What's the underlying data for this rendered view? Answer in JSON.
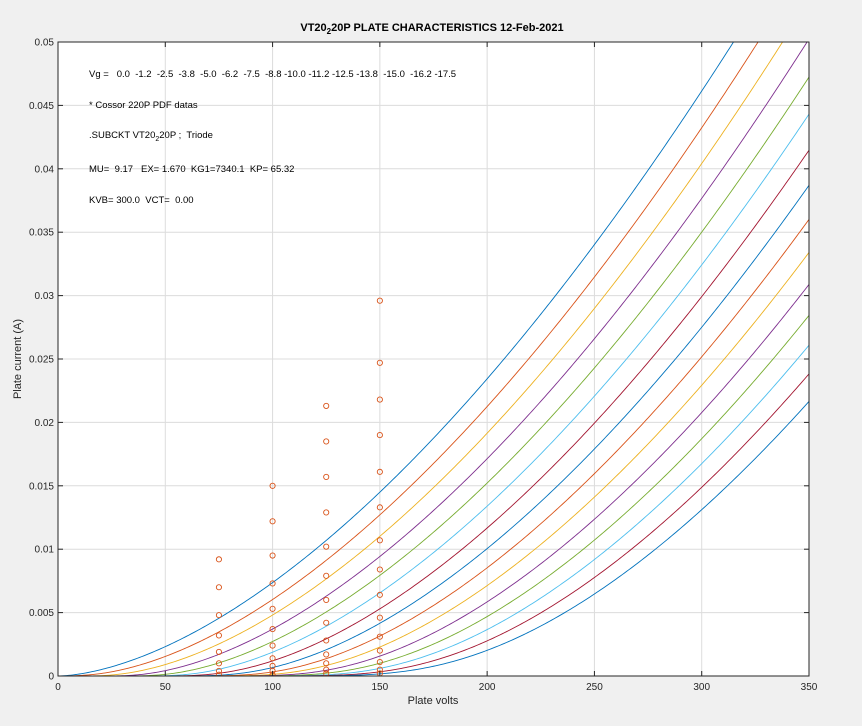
{
  "chart_data": {
    "type": "line",
    "title": "VT20 20P PLATE CHARACTERISTICS  12-Feb-2021",
    "title_parts": {
      "pre": "VT20",
      "sub": "2",
      "post": "20P PLATE CHARACTERISTICS  12-Feb-2021"
    },
    "xlabel": "Plate volts",
    "ylabel": "Plate current (A)",
    "xlim": [
      0,
      350
    ],
    "ylim": [
      0,
      0.05
    ],
    "grid": true,
    "xticks": [
      0,
      50,
      100,
      150,
      200,
      250,
      300,
      350
    ],
    "xtick_labels": [
      "0",
      "50",
      "100",
      "150",
      "200",
      "250",
      "300",
      "350"
    ],
    "yticks": [
      0,
      0.005,
      0.01,
      0.015,
      0.02,
      0.025,
      0.03,
      0.035,
      0.04,
      0.045,
      0.05
    ],
    "ytick_labels": [
      "0",
      "0.005",
      "0.01",
      "0.015",
      "0.02",
      "0.025",
      "0.03",
      "0.035",
      "0.04",
      "0.045",
      "0.05"
    ],
    "annotations": {
      "vg": "Vg =   0.0  -1.2  -2.5  -3.8  -5.0  -6.2  -7.5  -8.8 -10.0 -11.2 -12.5 -13.8  -15.0  -16.2 -17.5",
      "source": "* Cossor 220P PDF datas",
      "subckt_pre": ".SUBCKT VT20",
      "subckt_sub": "2",
      "subckt_post": "20P ;  Triode",
      "params1": "MU=  9.17   EX= 1.670  KG1=7340.1  KP= 65.32",
      "params2": "KVB= 300.0  VCT=  0.00"
    },
    "model": {
      "mu": 9.17,
      "ex": 1.67,
      "kg1": 7340.1,
      "kp": 65.32,
      "kvb": 300.0
    },
    "grid_voltages": [
      0.0,
      -1.25,
      -2.5,
      -3.75,
      -5.0,
      -6.25,
      -7.5,
      -8.75,
      -10.0,
      -11.25,
      -12.5,
      -13.75,
      -15.0,
      -16.25,
      -17.5
    ],
    "series_colors": [
      "#0072bd",
      "#d95319",
      "#edb120",
      "#7e2f8e",
      "#77ac30",
      "#4dbeee",
      "#a2142f"
    ],
    "marker_color": "#d95319",
    "measured_points": [
      {
        "x": 75,
        "values": [
          0.0092,
          0.007,
          0.0048,
          0.0032,
          0.0019,
          0.001,
          0.0004,
          0.0001
        ]
      },
      {
        "x": 100,
        "values": [
          0.015,
          0.0122,
          0.0095,
          0.0073,
          0.0053,
          0.0037,
          0.0024,
          0.0014,
          0.0008,
          0.0004,
          0.0001
        ]
      },
      {
        "x": 125,
        "values": [
          0.0213,
          0.0185,
          0.0157,
          0.0129,
          0.0102,
          0.0079,
          0.006,
          0.0042,
          0.0028,
          0.0017,
          0.001,
          0.0005,
          0.0002
        ]
      },
      {
        "x": 150,
        "values": [
          0.0296,
          0.0247,
          0.0218,
          0.019,
          0.0161,
          0.0133,
          0.0107,
          0.0084,
          0.0064,
          0.0046,
          0.0031,
          0.002,
          0.0011,
          0.0005,
          0.0002
        ]
      }
    ]
  }
}
